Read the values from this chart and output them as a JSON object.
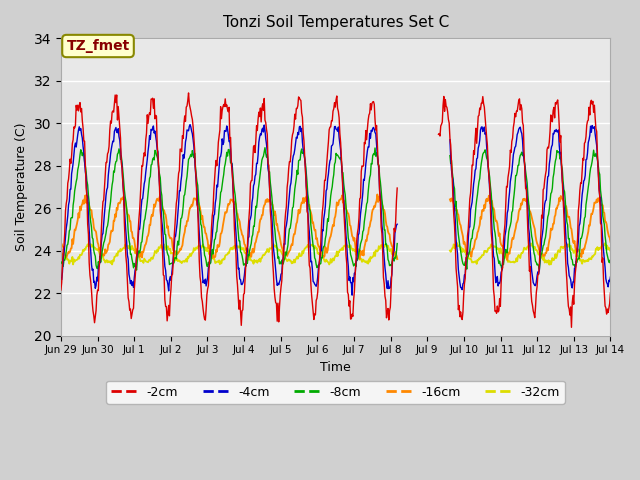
{
  "title": "Tonzi Soil Temperatures Set C",
  "xlabel": "Time",
  "ylabel": "Soil Temperature (C)",
  "ylim": [
    20,
    34
  ],
  "yticks": [
    20,
    22,
    24,
    26,
    28,
    30,
    32,
    34
  ],
  "series_colors": {
    "-2cm": "#dd0000",
    "-4cm": "#0000cc",
    "-8cm": "#00aa00",
    "-16cm": "#ff8800",
    "-32cm": "#dddd00"
  },
  "annotation_text": "TZ_fmet",
  "annotation_color": "#880000",
  "annotation_bg": "#ffffcc",
  "annotation_border": "#888800",
  "xtick_labels": [
    "Jun 29",
    "Jun 30",
    "Jul 1",
    "Jul 2",
    "Jul 3",
    "Jul 4",
    "Jul 5",
    "Jul 6",
    "Jul 7",
    "Jul 8",
    "Jul 9",
    "Jul 10",
    "Jul 11",
    "Jul 12",
    "Jul 13",
    "Jul 14"
  ],
  "n_days": 15,
  "points_per_day": 48
}
